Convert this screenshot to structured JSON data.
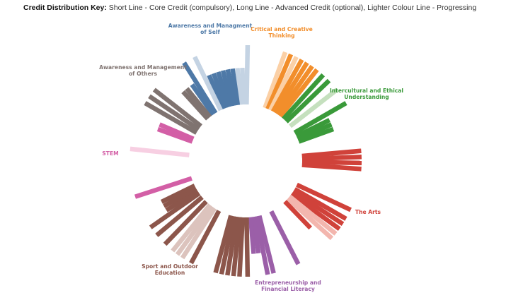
{
  "key": {
    "title": "Credit Distribution Key:",
    "text": "Short Line - Core Credit (compulsory), Long Line - Advanced Credit (optional), Lighter Colour Line - Progressing"
  },
  "chart_data": {
    "type": "radial-bar",
    "categories": [
      {
        "name": "Awareness and Managment of Self",
        "lines": [
          "Awareness and Managment",
          "of Self"
        ],
        "color": "#4e79a7",
        "light": "#c4d3e3",
        "bars": [
          {
            "dir": 271,
            "len": "long",
            "state": "progressing"
          },
          {
            "dir": 268,
            "len": "short",
            "state": "progressing"
          },
          {
            "dir": 265,
            "len": "short",
            "state": "progressing"
          },
          {
            "dir": 262,
            "len": "short",
            "state": "complete"
          },
          {
            "dir": 259,
            "len": "short",
            "state": "complete"
          },
          {
            "dir": 256,
            "len": "short",
            "state": "complete"
          },
          {
            "dir": 253,
            "len": "short",
            "state": "complete"
          },
          {
            "dir": 250,
            "len": "short",
            "state": "complete"
          },
          {
            "dir": 247,
            "len": "short",
            "state": "complete"
          },
          {
            "dir": 244,
            "len": "long",
            "state": "progressing"
          },
          {
            "dir": 238,
            "len": "long",
            "state": "complete"
          },
          {
            "dir": 235,
            "len": "short",
            "state": "complete"
          }
        ]
      },
      {
        "name": "Critical and Creative Thinking",
        "lines": [
          "Critical and Creative",
          "Thinking"
        ],
        "color": "#f28e2b",
        "light": "#fbd0a6",
        "bars": [
          {
            "dir": 290,
            "len": "long",
            "state": "progressing"
          },
          {
            "dir": 293,
            "len": "long",
            "state": "complete"
          },
          {
            "dir": 296,
            "len": "long",
            "state": "progressing"
          },
          {
            "dir": 299,
            "len": "long",
            "state": "complete"
          },
          {
            "dir": 302,
            "len": "long",
            "state": "complete"
          },
          {
            "dir": 305,
            "len": "long",
            "state": "complete"
          },
          {
            "dir": 308,
            "len": "long",
            "state": "complete"
          }
        ]
      },
      {
        "name": "Intercultural and Ethical Understanding",
        "lines": [
          "Intercultural and Ethical",
          "Understanding"
        ],
        "color": "#3a9a3a",
        "light": "#c5e0be",
        "bars": [
          {
            "dir": 312,
            "len": "long",
            "state": "complete"
          },
          {
            "dir": 316,
            "len": "long",
            "state": "complete"
          },
          {
            "dir": 322,
            "len": "long",
            "state": "progressing"
          },
          {
            "dir": 330,
            "len": "long",
            "state": "complete"
          },
          {
            "dir": 334,
            "len": "short",
            "state": "complete"
          },
          {
            "dir": 337,
            "len": "short",
            "state": "complete"
          },
          {
            "dir": 340,
            "len": "short",
            "state": "complete"
          }
        ]
      },
      {
        "name": "The Arts",
        "lines": [
          "The Arts"
        ],
        "color": "#d0423a",
        "light": "#f3b6ae",
        "bars": [
          {
            "dir": 355,
            "len": "long",
            "state": "complete"
          },
          {
            "dir": 358,
            "len": "long",
            "state": "complete"
          },
          {
            "dir": 1,
            "len": "long",
            "state": "complete"
          },
          {
            "dir": 4,
            "len": "long",
            "state": "complete"
          },
          {
            "dir": 25,
            "len": "long",
            "state": "complete"
          },
          {
            "dir": 30,
            "len": "long",
            "state": "complete"
          },
          {
            "dir": 33,
            "len": "long",
            "state": "complete"
          },
          {
            "dir": 36,
            "len": "long",
            "state": "complete"
          },
          {
            "dir": 39,
            "len": "long",
            "state": "progressing"
          },
          {
            "dir": 42,
            "len": "long",
            "state": "progressing"
          },
          {
            "dir": 46,
            "len": "short",
            "state": "complete"
          }
        ]
      },
      {
        "name": "Entrepreneurship and Financial Literacy",
        "lines": [
          "Entrepreneurship and",
          "Financial Literacy"
        ],
        "color": "#9b5fa8",
        "light": "#dcc3e1",
        "bars": [
          {
            "dir": 63,
            "len": "long",
            "state": "complete"
          },
          {
            "dir": 76,
            "len": "long",
            "state": "complete"
          },
          {
            "dir": 79,
            "len": "long",
            "state": "complete"
          },
          {
            "dir": 82,
            "len": "short",
            "state": "complete"
          },
          {
            "dir": 85,
            "len": "short",
            "state": "complete"
          }
        ]
      },
      {
        "name": "Sport and Outdoor Education",
        "lines": [
          "Sport and Outdoor",
          "Education"
        ],
        "color": "#8c564b",
        "light": "#dcc3bd",
        "bars": [
          {
            "dir": 89,
            "len": "long",
            "state": "complete"
          },
          {
            "dir": 93,
            "len": "long",
            "state": "complete"
          },
          {
            "dir": 96,
            "len": "long",
            "state": "complete"
          },
          {
            "dir": 99,
            "len": "long",
            "state": "complete"
          },
          {
            "dir": 102,
            "len": "long",
            "state": "complete"
          },
          {
            "dir": 105,
            "len": "long",
            "state": "complete"
          },
          {
            "dir": 118,
            "len": "long",
            "state": "complete"
          },
          {
            "dir": 123,
            "len": "long",
            "state": "progressing"
          },
          {
            "dir": 126,
            "len": "long",
            "state": "progressing"
          },
          {
            "dir": 129,
            "len": "long",
            "state": "progressing"
          },
          {
            "dir": 134,
            "len": "long",
            "state": "complete"
          },
          {
            "dir": 140,
            "len": "long",
            "state": "complete"
          },
          {
            "dir": 145,
            "len": "long",
            "state": "complete"
          },
          {
            "dir": 148,
            "len": "short",
            "state": "complete"
          },
          {
            "dir": 151,
            "len": "short",
            "state": "complete"
          },
          {
            "dir": 154,
            "len": "short",
            "state": "complete"
          }
        ]
      },
      {
        "name": "STEM",
        "lines": [
          "STEM"
        ],
        "color": "#d35fa6",
        "light": "#f7cfe2",
        "bars": [
          {
            "dir": 162,
            "len": "long",
            "state": "complete"
          },
          {
            "dir": 186,
            "len": "long",
            "state": "progressing"
          },
          {
            "dir": 200,
            "len": "short",
            "state": "complete"
          },
          {
            "dir": 203,
            "len": "short",
            "state": "complete"
          }
        ]
      },
      {
        "name": "Awareness and Management of Others",
        "lines": [
          "Awareness and Management",
          "of Others"
        ],
        "color": "#7f7370",
        "light": "#d5cfcd",
        "bars": [
          {
            "dir": 210,
            "len": "long",
            "state": "complete"
          },
          {
            "dir": 214,
            "len": "long",
            "state": "complete"
          },
          {
            "dir": 218,
            "len": "long",
            "state": "complete"
          },
          {
            "dir": 228,
            "len": "short",
            "state": "complete"
          },
          {
            "dir": 231,
            "len": "short",
            "state": "complete"
          }
        ]
      }
    ]
  }
}
